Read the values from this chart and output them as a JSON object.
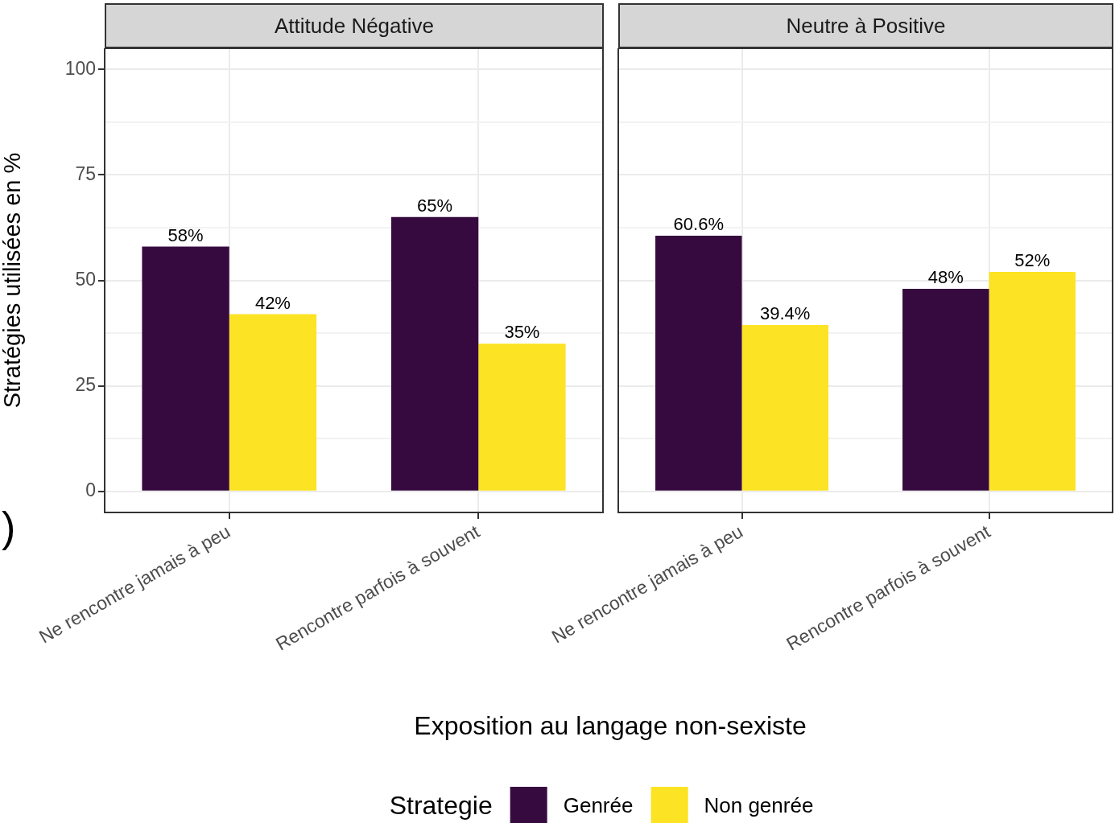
{
  "chart_data": [
    {
      "type": "bar",
      "title": "Attitude Négative",
      "ylabel": "Stratégies utilisées en %",
      "categories": [
        "Ne rencontre jamais à peu",
        "Rencontre parfois à souvent"
      ],
      "series": [
        {
          "name": "Genrée",
          "color": "#360a3f",
          "values": [
            58,
            65
          ],
          "value_labels": [
            "58%",
            "65%"
          ]
        },
        {
          "name": "Non genrée",
          "color": "#fce323",
          "values": [
            42,
            35
          ],
          "value_labels": [
            "42%",
            "35%"
          ]
        }
      ],
      "ylim": [
        -5,
        105
      ],
      "yticks": [
        0,
        {
          "value": 12.5,
          "label": null
        },
        25,
        {
          "value": 37.5,
          "label": null
        },
        50,
        {
          "value": 62.5,
          "label": null
        },
        75,
        {
          "value": 87.5,
          "label": null
        },
        100
      ],
      "grid": true,
      "annotations": [
        ")"
      ],
      "legend_title": "Strategie",
      "legend": "bottom"
    },
    {
      "type": "bar",
      "title": "Neutre à Positive",
      "xlabel": "Exposition au langage non-sexiste",
      "tick_labels": "x",
      "categories": [
        "Ne rencontre jamais à peu",
        "Rencontre parfois à souvent"
      ],
      "series": [
        {
          "color": "#360a3f",
          "values": [
            60.6,
            48
          ],
          "value_labels": [
            "60.6%",
            "48%"
          ]
        },
        {
          "color": "#fce323",
          "values": [
            39.4,
            52
          ],
          "value_labels": [
            "39.4%",
            "52%"
          ]
        }
      ],
      "ylim": [
        -5,
        105
      ],
      "yticks": [
        0,
        {
          "value": 12.5,
          "label": null
        },
        25,
        {
          "value": 37.5,
          "label": null
        },
        50,
        {
          "value": 62.5,
          "label": null
        },
        75,
        {
          "value": 87.5,
          "label": null
        },
        100
      ],
      "grid": true
    }
  ]
}
